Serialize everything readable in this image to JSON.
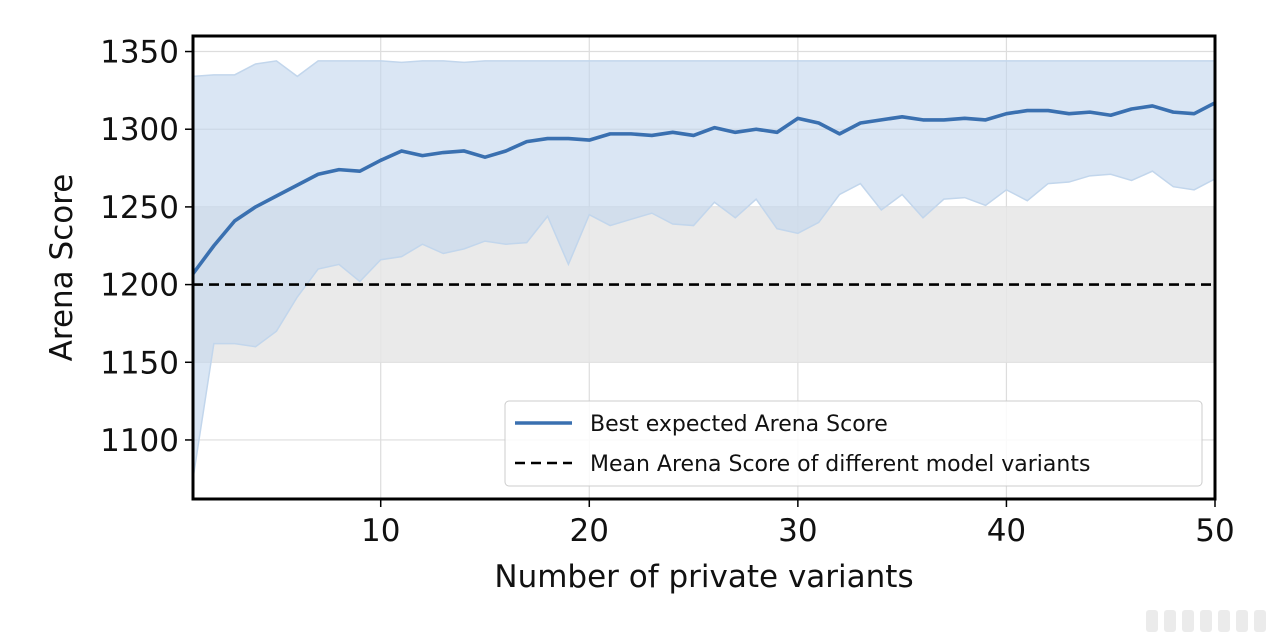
{
  "chart_data": {
    "type": "line",
    "xlabel": "Number of private variants",
    "ylabel": "Arena Score",
    "xlim": [
      1,
      50
    ],
    "ylim": [
      1062,
      1360
    ],
    "xticks": [
      10,
      20,
      30,
      40,
      50
    ],
    "yticks": [
      1100,
      1150,
      1200,
      1250,
      1300,
      1350
    ],
    "grid": true,
    "legend_position": "lower-right",
    "mean_line": {
      "name": "Mean Arena Score of different model variants",
      "value": 1200,
      "color": "#000000",
      "style": "dashed"
    },
    "mean_band": {
      "lower": 1150,
      "upper": 1250,
      "color": "#e6e6e6"
    },
    "series": [
      {
        "name": "Best expected Arena Score",
        "color": "#3a70b0",
        "band_color": "#c2d6ec",
        "x": [
          1,
          2,
          3,
          4,
          5,
          6,
          7,
          8,
          9,
          10,
          11,
          12,
          13,
          14,
          15,
          16,
          17,
          18,
          19,
          20,
          21,
          22,
          23,
          24,
          25,
          26,
          27,
          28,
          29,
          30,
          31,
          32,
          33,
          34,
          35,
          36,
          37,
          38,
          39,
          40,
          41,
          42,
          43,
          44,
          45,
          46,
          47,
          48,
          49,
          50
        ],
        "y": [
          1207,
          1225,
          1241,
          1250,
          1257,
          1264,
          1271,
          1274,
          1273,
          1280,
          1286,
          1283,
          1285,
          1286,
          1282,
          1286,
          1292,
          1294,
          1294,
          1293,
          1297,
          1297,
          1296,
          1298,
          1296,
          1301,
          1298,
          1300,
          1298,
          1307,
          1304,
          1297,
          1304,
          1306,
          1308,
          1306,
          1306,
          1307,
          1306,
          1310,
          1312,
          1312,
          1310,
          1311,
          1309,
          1313,
          1315,
          1311,
          1310,
          1317
        ],
        "upper": [
          1334,
          1335,
          1335,
          1342,
          1344,
          1334,
          1344,
          1344,
          1344,
          1344,
          1343,
          1344,
          1344,
          1343,
          1344,
          1344,
          1344,
          1344,
          1344,
          1344,
          1344,
          1344,
          1344,
          1344,
          1344,
          1344,
          1344,
          1344,
          1344,
          1344,
          1344,
          1344,
          1344,
          1344,
          1344,
          1344,
          1344,
          1344,
          1344,
          1344,
          1344,
          1344,
          1344,
          1344,
          1344,
          1344,
          1344,
          1344,
          1344,
          1344
        ],
        "lower": [
          1075,
          1162,
          1162,
          1160,
          1170,
          1192,
          1210,
          1213,
          1202,
          1216,
          1218,
          1226,
          1220,
          1223,
          1228,
          1226,
          1227,
          1244,
          1213,
          1245,
          1238,
          1242,
          1246,
          1239,
          1238,
          1253,
          1243,
          1255,
          1236,
          1233,
          1240,
          1258,
          1265,
          1248,
          1258,
          1243,
          1255,
          1256,
          1251,
          1261,
          1254,
          1265,
          1266,
          1270,
          1271,
          1267,
          1273,
          1263,
          1261,
          1268
        ]
      }
    ]
  }
}
